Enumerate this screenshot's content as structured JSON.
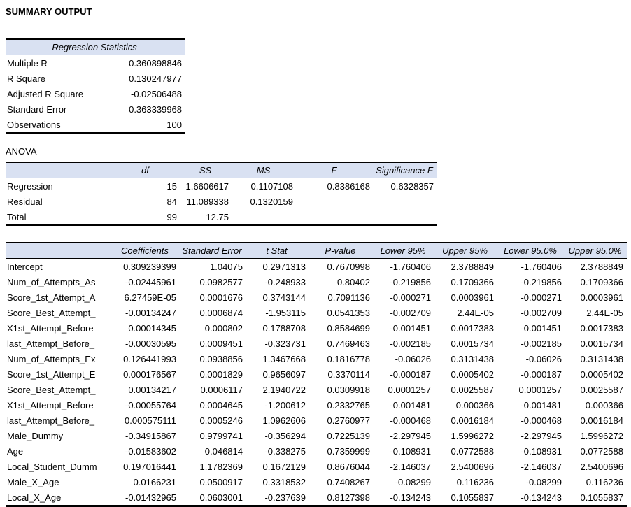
{
  "title": "SUMMARY OUTPUT",
  "colors": {
    "header_bg": "#D9E1F2",
    "border": "#000000",
    "text": "#000000"
  },
  "regression_statistics": {
    "header": "Regression Statistics",
    "rows": [
      {
        "label": "Multiple R",
        "value": "0.360898846"
      },
      {
        "label": "R Square",
        "value": "0.130247977"
      },
      {
        "label": "Adjusted R Square",
        "value": "-0.02506488"
      },
      {
        "label": "Standard Error",
        "value": "0.363339968"
      },
      {
        "label": "Observations",
        "value": "100"
      }
    ]
  },
  "anova": {
    "label": "ANOVA",
    "headers": [
      "",
      "df",
      "SS",
      "MS",
      "F",
      "Significance F"
    ],
    "rows": [
      [
        "Regression",
        "15",
        "1.6606617",
        "0.1107108",
        "0.8386168",
        "0.6328357"
      ],
      [
        "Residual",
        "84",
        "11.089338",
        "0.1320159",
        "",
        ""
      ],
      [
        "Total",
        "99",
        "12.75",
        "",
        "",
        ""
      ]
    ]
  },
  "coefficients": {
    "headers": [
      "",
      "Coefficients",
      "Standard Error",
      "t Stat",
      "P-value",
      "Lower 95%",
      "Upper 95%",
      "Lower 95.0%",
      "Upper 95.0%"
    ],
    "rows": [
      [
        "Intercept",
        "0.309239399",
        "1.04075",
        "0.2971313",
        "0.7670998",
        "-1.760406",
        "2.3788849",
        "-1.760406",
        "2.3788849"
      ],
      [
        "Num_of_Attempts_As",
        "-0.02445961",
        "0.0982577",
        "-0.248933",
        "0.80402",
        "-0.219856",
        "0.1709366",
        "-0.219856",
        "0.1709366"
      ],
      [
        "Score_1st_Attempt_A",
        "6.27459E-05",
        "0.0001676",
        "0.3743144",
        "0.7091136",
        "-0.000271",
        "0.0003961",
        "-0.000271",
        "0.0003961"
      ],
      [
        "Score_Best_Attempt_",
        "-0.00134247",
        "0.0006874",
        "-1.953115",
        "0.0541353",
        "-0.002709",
        "2.44E-05",
        "-0.002709",
        "2.44E-05"
      ],
      [
        "X1st_Attempt_Before",
        "0.00014345",
        "0.000802",
        "0.1788708",
        "0.8584699",
        "-0.001451",
        "0.0017383",
        "-0.001451",
        "0.0017383"
      ],
      [
        "last_Attempt_Before_",
        "-0.00030595",
        "0.0009451",
        "-0.323731",
        "0.7469463",
        "-0.002185",
        "0.0015734",
        "-0.002185",
        "0.0015734"
      ],
      [
        "Num_of_Attempts_Ex",
        "0.126441993",
        "0.0938856",
        "1.3467668",
        "0.1816778",
        "-0.06026",
        "0.3131438",
        "-0.06026",
        "0.3131438"
      ],
      [
        "Score_1st_Attempt_E",
        "0.000176567",
        "0.0001829",
        "0.9656097",
        "0.3370114",
        "-0.000187",
        "0.0005402",
        "-0.000187",
        "0.0005402"
      ],
      [
        "Score_Best_Attempt_",
        "0.00134217",
        "0.0006117",
        "2.1940722",
        "0.0309918",
        "0.0001257",
        "0.0025587",
        "0.0001257",
        "0.0025587"
      ],
      [
        "X1st_Attempt_Before",
        "-0.00055764",
        "0.0004645",
        "-1.200612",
        "0.2332765",
        "-0.001481",
        "0.000366",
        "-0.001481",
        "0.000366"
      ],
      [
        "last_Attempt_Before_",
        "0.000575111",
        "0.0005246",
        "1.0962606",
        "0.2760977",
        "-0.000468",
        "0.0016184",
        "-0.000468",
        "0.0016184"
      ],
      [
        "Male_Dummy",
        "-0.34915867",
        "0.9799741",
        "-0.356294",
        "0.7225139",
        "-2.297945",
        "1.5996272",
        "-2.297945",
        "1.5996272"
      ],
      [
        "Age",
        "-0.01583602",
        "0.046814",
        "-0.338275",
        "0.7359999",
        "-0.108931",
        "0.0772588",
        "-0.108931",
        "0.0772588"
      ],
      [
        "Local_Student_Dumm",
        "0.197016441",
        "1.1782369",
        "0.1672129",
        "0.8676044",
        "-2.146037",
        "2.5400696",
        "-2.146037",
        "2.5400696"
      ],
      [
        "Male_X_Age",
        "0.0166231",
        "0.0500917",
        "0.3318532",
        "0.7408267",
        "-0.08299",
        "0.116236",
        "-0.08299",
        "0.116236"
      ],
      [
        "Local_X_Age",
        "-0.01432965",
        "0.0603001",
        "-0.237639",
        "0.8127398",
        "-0.134243",
        "0.1055837",
        "-0.134243",
        "0.1055837"
      ]
    ]
  }
}
